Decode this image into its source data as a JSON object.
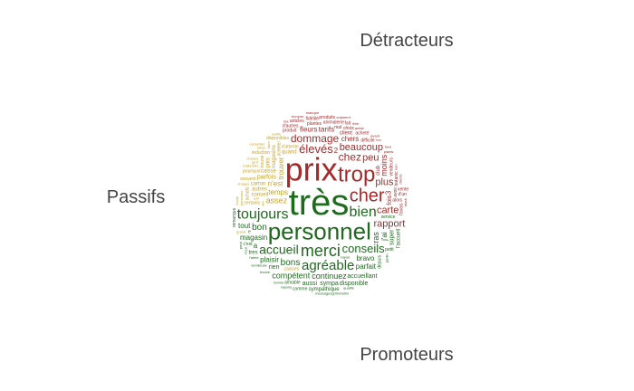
{
  "chart_data": {
    "type": "wordcloud",
    "groups": [
      {
        "name": "Détracteurs",
        "color": "#a52a2a"
      },
      {
        "name": "Passifs",
        "color": "#c9a227"
      },
      {
        "name": "Promoteurs",
        "color": "#1e6b1e"
      }
    ],
    "words": [
      {
        "text": "prix",
        "group": "Détracteurs",
        "weight": 36
      },
      {
        "text": "trop",
        "group": "Détracteurs",
        "weight": 24
      },
      {
        "text": "cher",
        "group": "Détracteurs",
        "weight": 20
      },
      {
        "text": "élevés",
        "group": "Détracteurs",
        "weight": 13
      },
      {
        "text": "chez",
        "group": "Détracteurs",
        "weight": 12
      },
      {
        "text": "beaucoup",
        "group": "Détracteurs",
        "weight": 11
      },
      {
        "text": "dommage",
        "group": "Détracteurs",
        "weight": 12
      },
      {
        "text": "carte",
        "group": "Détracteurs",
        "weight": 11
      },
      {
        "text": "plus",
        "group": "Détracteurs",
        "weight": 11
      },
      {
        "text": "rapport",
        "group": "Détracteurs",
        "weight": 11
      },
      {
        "text": "peu",
        "group": "Détracteurs",
        "weight": 11
      },
      {
        "text": "moins",
        "group": "Détracteurs",
        "weight": 9
      },
      {
        "text": "chers",
        "group": "Détracteurs",
        "weight": 8
      },
      {
        "text": "fleurs",
        "group": "Détracteurs",
        "weight": 8
      },
      {
        "text": "tarifs",
        "group": "Détracteurs",
        "weight": 8
      },
      {
        "text": "fois",
        "group": "Détracteurs",
        "weight": 7
      },
      {
        "text": "club",
        "group": "Détracteurs",
        "weight": 6
      },
      {
        "text": "client",
        "group": "Détracteurs",
        "weight": 6
      },
      {
        "text": "produit",
        "group": "Détracteurs",
        "weight": 5
      },
      {
        "text": "alors",
        "group": "Détracteurs",
        "weight": 5
      },
      {
        "text": "mal",
        "group": "Détracteurs",
        "weight": 5
      },
      {
        "text": "avoir",
        "group": "Détracteurs",
        "weight": 5
      },
      {
        "text": "plantes",
        "group": "Détracteurs",
        "weight": 5
      },
      {
        "text": "difficile",
        "group": "Détracteurs",
        "weight": 5
      },
      {
        "text": "animalerie",
        "group": "Détracteurs",
        "weight": 5
      },
      {
        "text": "vendeurs",
        "group": "Détracteurs",
        "weight": 5
      },
      {
        "text": "d'autres",
        "group": "Détracteurs",
        "weight": 5
      },
      {
        "text": "choix",
        "group": "Détracteurs",
        "weight": 5
      },
      {
        "text": "acheté",
        "group": "Détracteurs",
        "weight": 5
      },
      {
        "text": "botanic",
        "group": "Détracteurs",
        "weight": 5
      },
      {
        "text": "articles",
        "group": "Détracteurs",
        "weight": 5
      },
      {
        "text": "fidélité",
        "group": "Détracteurs",
        "weight": 5
      },
      {
        "text": "vente",
        "group": "Détracteurs",
        "weight": 5
      },
      {
        "text": "l'avais",
        "group": "Détracteurs",
        "weight": 5
      },
      {
        "text": "d'un",
        "group": "Détracteurs",
        "weight": 5
      },
      {
        "text": "produits",
        "group": "Détracteurs",
        "weight": 5
      },
      {
        "text": "fait",
        "group": "Détracteurs",
        "weight": 5
      },
      {
        "text": "achat",
        "group": "Détracteurs",
        "weight": 4
      },
      {
        "text": "plants",
        "group": "Détracteurs",
        "weight": 4
      },
      {
        "text": "clients",
        "group": "Détracteurs",
        "weight": 4
      },
      {
        "text": "bonjour",
        "group": "Détracteurs",
        "weight": 4
      },
      {
        "text": "vraiment",
        "group": "Détracteurs",
        "weight": 4
      },
      {
        "text": "avant",
        "group": "Détracteurs",
        "weight": 4
      },
      {
        "text": "non",
        "group": "Détracteurs",
        "weight": 4
      },
      {
        "text": "l'on",
        "group": "Détracteurs",
        "weight": 4
      },
      {
        "text": "être",
        "group": "Détracteurs",
        "weight": 4
      },
      {
        "text": "manque",
        "group": "Détracteurs",
        "weight": 4
      },
      {
        "text": "stock",
        "group": "Détracteurs",
        "weight": 4
      },
      {
        "text": "ma",
        "group": "Détracteurs",
        "weight": 4
      },
      {
        "text": "tous",
        "group": "Détracteurs",
        "weight": 4
      },
      {
        "text": "3",
        "group": "Détracteurs",
        "weight": 8
      },
      {
        "text": "2",
        "group": "Détracteurs",
        "weight": 8
      },
      {
        "text": "conseil",
        "group": "Passifs",
        "weight": 6
      },
      {
        "text": "acheter",
        "group": "Passifs",
        "weight": 5
      },
      {
        "text": "d'attente",
        "group": "Passifs",
        "weight": 5
      },
      {
        "text": "certains",
        "group": "Passifs",
        "weight": 5
      },
      {
        "text": "caisses",
        "group": "Passifs",
        "weight": 5
      },
      {
        "text": "caisse",
        "group": "Passifs",
        "weight": 6
      },
      {
        "text": "trouvé",
        "group": "Passifs",
        "weight": 5
      },
      {
        "text": "magasins",
        "group": "Passifs",
        "weight": 6
      },
      {
        "text": "1",
        "group": "Passifs",
        "weight": 6
      },
      {
        "text": "quand",
        "group": "Passifs",
        "weight": 6
      },
      {
        "text": "temps",
        "group": "Passifs",
        "weight": 8
      },
      {
        "text": "n'est",
        "group": "Passifs",
        "weight": 8
      },
      {
        "text": "trouver",
        "group": "Passifs",
        "weight": 8
      },
      {
        "text": "assez",
        "group": "Passifs",
        "weight": 9
      },
      {
        "text": "parfois",
        "group": "Passifs",
        "weight": 7
      },
      {
        "text": "autres",
        "group": "Passifs",
        "weight": 6
      },
      {
        "text": "pots",
        "group": "Passifs",
        "weight": 6
      },
      {
        "text": "carton",
        "group": "Passifs",
        "weight": 6
      },
      {
        "text": "pourquoi",
        "group": "Passifs",
        "weight": 5
      },
      {
        "text": "souvent",
        "group": "Passifs",
        "weight": 5
      },
      {
        "text": "disponibles",
        "group": "Passifs",
        "weight": 5
      },
      {
        "text": "achats",
        "group": "Passifs",
        "weight": 5
      },
      {
        "text": "réduction",
        "group": "Passifs",
        "weight": 5
      },
      {
        "text": "voir",
        "group": "Passifs",
        "weight": 4
      },
      {
        "text": "personne",
        "group": "Passifs",
        "weight": 4
      },
      {
        "text": "d'attendre",
        "group": "Passifs",
        "weight": 4
      },
      {
        "text": "chaque",
        "group": "Passifs",
        "weight": 4
      },
      {
        "text": "qu'il",
        "group": "Passifs",
        "weight": 4
      },
      {
        "text": "faire",
        "group": "Passifs",
        "weight": 4
      },
      {
        "text": "choses",
        "group": "Passifs",
        "weight": 4
      },
      {
        "text": "sinon",
        "group": "Passifs",
        "weight": 4
      },
      {
        "text": "petits",
        "group": "Passifs",
        "weight": 4
      },
      {
        "text": "fonds",
        "group": "Passifs",
        "weight": 4
      },
      {
        "text": "grand",
        "group": "Passifs",
        "weight": 4
      },
      {
        "text": "conseiller",
        "group": "Passifs",
        "weight": 4
      },
      {
        "text": "très",
        "group": "Promoteurs",
        "weight": 40
      },
      {
        "text": "personnel",
        "group": "Promoteurs",
        "weight": 26
      },
      {
        "text": "merci",
        "group": "Promoteurs",
        "weight": 18
      },
      {
        "text": "toujours",
        "group": "Promoteurs",
        "weight": 16
      },
      {
        "text": "agréable",
        "group": "Promoteurs",
        "weight": 15
      },
      {
        "text": "bien",
        "group": "Promoteurs",
        "weight": 16
      },
      {
        "text": "accueil",
        "group": "Promoteurs",
        "weight": 14
      },
      {
        "text": "conseils",
        "group": "Promoteurs",
        "weight": 13
      },
      {
        "text": "bons",
        "group": "Promoteurs",
        "weight": 10
      },
      {
        "text": "bon",
        "group": "Promoteurs",
        "weight": 10
      },
      {
        "text": "continuez",
        "group": "Promoteurs",
        "weight": 9
      },
      {
        "text": "compétent",
        "group": "Promoteurs",
        "weight": 9
      },
      {
        "text": "magasin",
        "group": "Promoteurs",
        "weight": 8
      },
      {
        "text": "sympa",
        "group": "Promoteurs",
        "weight": 7
      },
      {
        "text": "bravo",
        "group": "Promoteurs",
        "weight": 8
      },
      {
        "text": "plaisir",
        "group": "Promoteurs",
        "weight": 8
      },
      {
        "text": "j'ai",
        "group": "Promoteurs",
        "weight": 8
      },
      {
        "text": "parfait",
        "group": "Promoteurs",
        "weight": 8
      },
      {
        "text": "rien",
        "group": "Promoteurs",
        "weight": 7
      },
      {
        "text": "super",
        "group": "Promoteurs",
        "weight": 7
      },
      {
        "text": "aussi",
        "group": "Promoteurs",
        "weight": 7
      },
      {
        "text": "accueillant",
        "group": "Promoteurs",
        "weight": 7
      },
      {
        "text": "ras",
        "group": "Promoteurs",
        "weight": 9
      },
      {
        "text": "disponible",
        "group": "Promoteurs",
        "weight": 7
      },
      {
        "text": "sympathique",
        "group": "Promoteurs",
        "weight": 6
      },
      {
        "text": "tres",
        "group": "Promoteurs",
        "weight": 6
      },
      {
        "text": "l'accueil",
        "group": "Promoteurs",
        "weight": 6
      },
      {
        "text": "service",
        "group": "Promoteurs",
        "weight": 5
      },
      {
        "text": "aimable",
        "group": "Promoteurs",
        "weight": 5
      },
      {
        "text": "depuis",
        "group": "Promoteurs",
        "weight": 5
      },
      {
        "text": "c'est",
        "group": "Promoteurs",
        "weight": 5
      },
      {
        "text": "comme",
        "group": "Promoteurs",
        "weight": 5
      },
      {
        "text": "petit",
        "group": "Promoteurs",
        "weight": 5
      },
      {
        "text": "remarque",
        "group": "Promoteurs",
        "weight": 5
      },
      {
        "text": "tout",
        "group": "Promoteurs",
        "weight": 8
      },
      {
        "text": "vendeuse",
        "group": "Promoteurs",
        "weight": 4
      },
      {
        "text": "jardin",
        "group": "Promoteurs",
        "weight": 4
      },
      {
        "text": "l'aime",
        "group": "Promoteurs",
        "weight": 4
      },
      {
        "text": "rayon",
        "group": "Promoteurs",
        "weight": 4
      },
      {
        "text": "trouve",
        "group": "Promoteurs",
        "weight": 4
      },
      {
        "text": "reçu",
        "group": "Promoteurs",
        "weight": 4
      },
      {
        "text": "bonne",
        "group": "Promoteurs",
        "weight": 4
      },
      {
        "text": "qualité",
        "group": "Promoteurs",
        "weight": 4
      },
      {
        "text": "rayons",
        "group": "Promoteurs",
        "weight": 4
      },
      {
        "text": "peut",
        "group": "Promoteurs",
        "weight": 4
      },
      {
        "text": "messagesgrimmatrix",
        "group": "Promoteurs",
        "weight": 4
      },
      {
        "text": "a",
        "group": "Promoteurs",
        "weight": 8
      },
      {
        "text": "e",
        "group": "Promoteurs",
        "weight": 5
      }
    ]
  }
}
